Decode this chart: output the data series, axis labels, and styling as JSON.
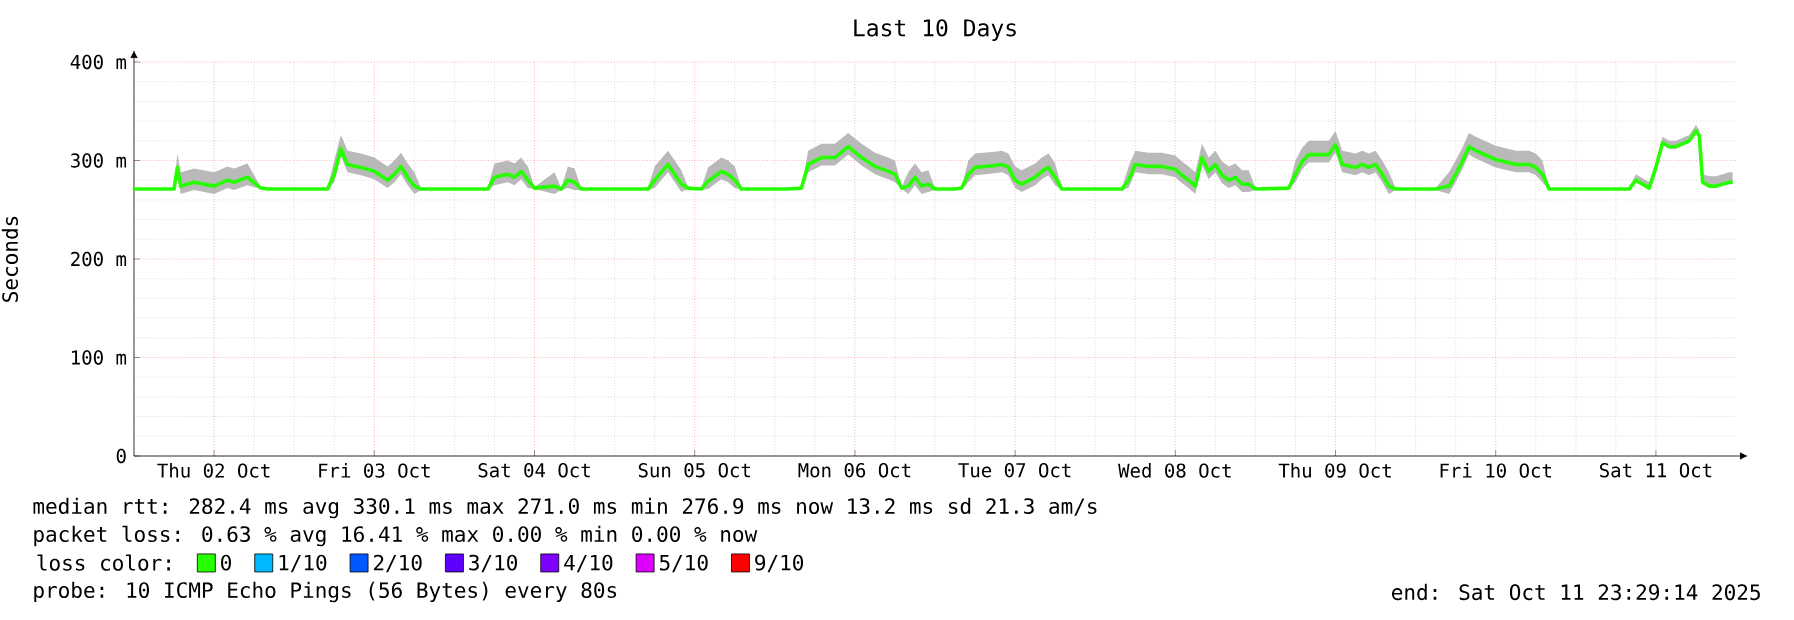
{
  "chart_data": {
    "type": "line",
    "title": "Last 10 Days",
    "ylabel": "Seconds",
    "legend_title": "loss color:",
    "xlim": [
      "2025-10-02T00:00",
      "2025-10-12T00:00"
    ],
    "xticks": [
      {
        "value": "2025-10-02T12:00",
        "label": "Thu 02 Oct"
      },
      {
        "value": "2025-10-03T12:00",
        "label": "Fri 03 Oct"
      },
      {
        "value": "2025-10-04T12:00",
        "label": "Sat 04 Oct"
      },
      {
        "value": "2025-10-05T12:00",
        "label": "Sun 05 Oct"
      },
      {
        "value": "2025-10-06T12:00",
        "label": "Mon 06 Oct"
      },
      {
        "value": "2025-10-07T12:00",
        "label": "Tue 07 Oct"
      },
      {
        "value": "2025-10-08T12:00",
        "label": "Wed 08 Oct"
      },
      {
        "value": "2025-10-09T12:00",
        "label": "Thu 09 Oct"
      },
      {
        "value": "2025-10-10T12:00",
        "label": "Fri 10 Oct"
      },
      {
        "value": "2025-10-11T12:00",
        "label": "Sat 11 Oct"
      }
    ],
    "ylim": [
      0,
      400
    ],
    "yticks": [
      0,
      {
        "value": 100,
        "label": "100 m"
      },
      {
        "value": 200,
        "label": "200 m"
      },
      {
        "value": 300,
        "label": "300 m"
      },
      {
        "value": 400,
        "label": "400 m"
      }
    ],
    "grid": true,
    "legend": "bottom",
    "x": [
      "2025-10-02T00:00",
      "2025-10-02T06:00",
      "2025-10-02T06:30",
      "2025-10-02T07:00",
      "2025-10-02T09:00",
      "2025-10-02T12:00",
      "2025-10-02T14:00",
      "2025-10-02T15:00",
      "2025-10-02T17:00",
      "2025-10-02T19:00",
      "2025-10-02T20:00",
      "2025-10-03T05:00",
      "2025-10-03T06:00",
      "2025-10-03T07:00",
      "2025-10-03T08:00",
      "2025-10-03T10:00",
      "2025-10-03T12:00",
      "2025-10-03T14:00",
      "2025-10-03T15:00",
      "2025-10-03T16:00",
      "2025-10-03T17:00",
      "2025-10-03T18:00",
      "2025-10-03T19:00",
      "2025-10-04T05:00",
      "2025-10-04T06:00",
      "2025-10-04T08:00",
      "2025-10-04T09:00",
      "2025-10-04T10:00",
      "2025-10-04T11:00",
      "2025-10-04T12:00",
      "2025-10-04T15:00",
      "2025-10-04T16:00",
      "2025-10-04T17:00",
      "2025-10-04T18:00",
      "2025-10-04T19:00",
      "2025-10-05T05:00",
      "2025-10-05T06:00",
      "2025-10-05T08:00",
      "2025-10-05T10:00",
      "2025-10-05T11:00",
      "2025-10-05T13:00",
      "2025-10-05T14:00",
      "2025-10-05T16:00",
      "2025-10-05T17:00",
      "2025-10-05T18:00",
      "2025-10-05T19:00",
      "2025-10-06T02:00",
      "2025-10-06T04:00",
      "2025-10-06T05:00",
      "2025-10-06T07:00",
      "2025-10-06T09:00",
      "2025-10-06T11:00",
      "2025-10-06T13:00",
      "2025-10-06T15:00",
      "2025-10-06T17:00",
      "2025-10-06T18:00",
      "2025-10-06T19:00",
      "2025-10-06T20:00",
      "2025-10-06T21:00",
      "2025-10-06T22:00",
      "2025-10-06T23:00",
      "2025-10-07T00:00",
      "2025-10-07T03:00",
      "2025-10-07T04:00",
      "2025-10-07T05:00",
      "2025-10-07T06:00",
      "2025-10-07T09:00",
      "2025-10-07T10:00",
      "2025-10-07T11:00",
      "2025-10-07T12:00",
      "2025-10-07T13:00",
      "2025-10-07T15:00",
      "2025-10-07T16:00",
      "2025-10-07T17:00",
      "2025-10-07T18:00",
      "2025-10-07T19:00",
      "2025-10-08T04:00",
      "2025-10-08T05:00",
      "2025-10-08T06:00",
      "2025-10-08T08:00",
      "2025-10-08T10:00",
      "2025-10-08T12:00",
      "2025-10-08T13:00",
      "2025-10-08T14:00",
      "2025-10-08T15:00",
      "2025-10-08T16:00",
      "2025-10-08T17:00",
      "2025-10-08T18:00",
      "2025-10-08T19:00",
      "2025-10-08T20:00",
      "2025-10-08T21:00",
      "2025-10-08T22:00",
      "2025-10-08T23:00",
      "2025-10-09T00:00",
      "2025-10-09T05:00",
      "2025-10-09T06:00",
      "2025-10-09T07:00",
      "2025-10-09T08:00",
      "2025-10-09T11:00",
      "2025-10-09T12:00",
      "2025-10-09T13:00",
      "2025-10-09T15:00",
      "2025-10-09T16:00",
      "2025-10-09T17:00",
      "2025-10-09T18:00",
      "2025-10-09T19:00",
      "2025-10-09T20:00",
      "2025-10-09T21:00",
      "2025-10-10T03:00",
      "2025-10-10T05:00",
      "2025-10-10T06:00",
      "2025-10-10T07:00",
      "2025-10-10T08:00",
      "2025-10-10T09:00",
      "2025-10-10T12:00",
      "2025-10-10T15:00",
      "2025-10-10T17:00",
      "2025-10-10T18:00",
      "2025-10-10T19:00",
      "2025-10-10T20:00",
      "2025-10-11T08:00",
      "2025-10-11T09:00",
      "2025-10-11T10:00",
      "2025-10-11T11:00",
      "2025-10-11T12:00",
      "2025-10-11T13:00",
      "2025-10-11T14:00",
      "2025-10-11T15:00",
      "2025-10-11T17:00",
      "2025-10-11T18:00",
      "2025-10-11T18:30",
      "2025-10-11T19:00",
      "2025-10-11T20:00",
      "2025-10-11T21:00",
      "2025-10-11T22:00",
      "2025-10-11T23:00",
      "2025-10-11T23:29"
    ],
    "series": [
      {
        "name": "0",
        "color": "#26ff00",
        "values": [
          271,
          271,
          293,
          274,
          278,
          274,
          280,
          278,
          283,
          272,
          271,
          271,
          286,
          312,
          296,
          293,
          289,
          280,
          286,
          294,
          283,
          274,
          271,
          271,
          283,
          286,
          283,
          289,
          280,
          272,
          274,
          271,
          280,
          278,
          271,
          271,
          280,
          296,
          276,
          272,
          271,
          279,
          289,
          286,
          280,
          271,
          271,
          272,
          296,
          303,
          303,
          314,
          303,
          294,
          289,
          286,
          272,
          274,
          283,
          274,
          276,
          271,
          271,
          272,
          286,
          293,
          295,
          296,
          293,
          280,
          276,
          283,
          289,
          293,
          283,
          271,
          271,
          280,
          296,
          294,
          294,
          291,
          285,
          280,
          274,
          303,
          289,
          296,
          285,
          280,
          283,
          276,
          276,
          271,
          272,
          286,
          299,
          306,
          306,
          316,
          296,
          293,
          296,
          293,
          296,
          286,
          274,
          271,
          271,
          274,
          286,
          299,
          314,
          310,
          301,
          296,
          296,
          293,
          286,
          271,
          271,
          280,
          276,
          272,
          293,
          318,
          314,
          314,
          320,
          330,
          325,
          278,
          274,
          274,
          276,
          278,
          278
        ],
        "lower": [
          270,
          270,
          285,
          266,
          270,
          266,
          272,
          270,
          275,
          271,
          270,
          270,
          278,
          304,
          288,
          285,
          281,
          272,
          278,
          286,
          275,
          266,
          270,
          270,
          275,
          278,
          275,
          281,
          272,
          271,
          266,
          270,
          272,
          270,
          270,
          270,
          272,
          288,
          268,
          271,
          270,
          271,
          281,
          278,
          272,
          270,
          270,
          271,
          288,
          295,
          295,
          306,
          295,
          286,
          281,
          278,
          271,
          266,
          275,
          266,
          268,
          270,
          270,
          271,
          278,
          285,
          287,
          288,
          285,
          272,
          268,
          275,
          281,
          285,
          275,
          270,
          270,
          272,
          288,
          286,
          286,
          283,
          277,
          272,
          266,
          295,
          281,
          288,
          277,
          272,
          275,
          268,
          268,
          270,
          271,
          278,
          291,
          298,
          298,
          308,
          288,
          285,
          288,
          285,
          288,
          278,
          266,
          270,
          270,
          266,
          278,
          291,
          306,
          302,
          293,
          288,
          288,
          285,
          278,
          270,
          270,
          278,
          274,
          270,
          291,
          316,
          312,
          312,
          318,
          328,
          323,
          276,
          272,
          272,
          274,
          276,
          276
        ],
        "upper": [
          272,
          272,
          307,
          288,
          292,
          288,
          294,
          292,
          297,
          273,
          272,
          272,
          300,
          326,
          310,
          307,
          303,
          294,
          300,
          308,
          297,
          288,
          272,
          272,
          297,
          300,
          297,
          303,
          294,
          273,
          288,
          272,
          294,
          292,
          272,
          272,
          294,
          310,
          290,
          273,
          272,
          293,
          303,
          300,
          294,
          272,
          272,
          273,
          310,
          317,
          317,
          328,
          317,
          308,
          303,
          300,
          273,
          288,
          297,
          288,
          290,
          272,
          272,
          273,
          300,
          307,
          309,
          310,
          307,
          294,
          290,
          297,
          303,
          307,
          297,
          272,
          272,
          294,
          310,
          308,
          308,
          305,
          299,
          294,
          288,
          317,
          303,
          310,
          299,
          294,
          297,
          290,
          290,
          272,
          273,
          300,
          313,
          320,
          320,
          330,
          310,
          307,
          310,
          307,
          310,
          300,
          288,
          272,
          272,
          288,
          300,
          313,
          328,
          324,
          315,
          310,
          310,
          307,
          300,
          272,
          272,
          286,
          282,
          278,
          299,
          324,
          320,
          320,
          326,
          336,
          331,
          286,
          284,
          284,
          286,
          288,
          288
        ]
      },
      {
        "name": "1/10",
        "color": "#00b8ff",
        "values": [
          null,
          null,
          null,
          null,
          null,
          null,
          null,
          null,
          null,
          null,
          null,
          null,
          null,
          null,
          null,
          null,
          null,
          null,
          null,
          null,
          null,
          null,
          null,
          null,
          null,
          null,
          null,
          null,
          null,
          null,
          null,
          null,
          null,
          null,
          null,
          null,
          null,
          null,
          null,
          null,
          null,
          null,
          null,
          null,
          null,
          null,
          null,
          null,
          null,
          null,
          null,
          null,
          null,
          null,
          null,
          null,
          null,
          null,
          null,
          null,
          null,
          null,
          null,
          null,
          null,
          null,
          null,
          null,
          null,
          null,
          null,
          null,
          null,
          null,
          null,
          null,
          null,
          null,
          null,
          null,
          null,
          null,
          null,
          null,
          null,
          null,
          null,
          null,
          null,
          null,
          null,
          null,
          null,
          null,
          null,
          null,
          null,
          null,
          null,
          null,
          null,
          null,
          null,
          null,
          null,
          null,
          null,
          null,
          null,
          null,
          null,
          null,
          null,
          null,
          null,
          null,
          null,
          null,
          null,
          null,
          null,
          null,
          null,
          null,
          null,
          null,
          null,
          null,
          null,
          null,
          null,
          null,
          null,
          null,
          null,
          null,
          null
        ]
      },
      {
        "name": "2/10",
        "color": "#0059ff",
        "values": [
          null,
          null,
          null,
          null,
          null,
          null,
          null,
          null,
          null,
          null,
          null,
          null,
          null,
          null,
          null,
          null,
          null,
          null,
          null,
          null,
          null,
          null,
          null,
          null,
          null,
          null,
          null,
          null,
          null,
          null,
          null,
          null,
          null,
          null,
          null,
          null,
          null,
          null,
          null,
          null,
          null,
          null,
          null,
          null,
          null,
          null,
          null,
          null,
          null,
          null,
          null,
          null,
          null,
          null,
          null,
          null,
          null,
          null,
          null,
          null,
          null,
          null,
          null,
          null,
          null,
          null,
          null,
          null,
          null,
          null,
          null,
          null,
          null,
          null,
          null,
          null,
          null,
          null,
          null,
          null,
          null,
          null,
          null,
          null,
          null,
          null,
          null,
          null,
          null,
          null,
          null,
          null,
          null,
          null,
          null,
          null,
          null,
          null,
          null,
          null,
          null,
          null,
          null,
          null,
          null,
          null,
          null,
          null,
          null,
          null,
          null,
          null,
          null,
          null,
          null,
          null,
          null,
          null,
          null,
          null,
          null,
          null,
          null,
          null,
          null,
          null,
          null,
          null,
          null,
          null,
          null,
          null,
          null,
          null,
          null,
          null,
          null
        ]
      },
      {
        "name": "3/10",
        "color": "#5e00ff",
        "values": [
          null,
          null,
          null,
          null,
          null,
          null,
          null,
          null,
          null,
          null,
          null,
          null,
          null,
          null,
          null,
          null,
          null,
          null,
          null,
          null,
          null,
          null,
          null,
          null,
          null,
          null,
          null,
          null,
          null,
          null,
          null,
          null,
          null,
          null,
          null,
          null,
          null,
          null,
          null,
          null,
          null,
          null,
          null,
          null,
          null,
          null,
          null,
          null,
          null,
          null,
          null,
          null,
          null,
          null,
          null,
          null,
          null,
          null,
          null,
          null,
          null,
          null,
          null,
          null,
          null,
          null,
          null,
          null,
          null,
          null,
          null,
          null,
          null,
          null,
          null,
          null,
          null,
          null,
          null,
          null,
          null,
          null,
          null,
          null,
          null,
          null,
          null,
          null,
          null,
          null,
          null,
          null,
          null,
          null,
          null,
          null,
          null,
          null,
          null,
          null,
          null,
          null,
          null,
          null,
          null,
          null,
          null,
          null,
          null,
          null,
          null,
          null,
          null,
          null,
          null,
          null,
          null,
          null,
          null,
          null,
          null,
          null,
          null,
          null,
          null,
          null,
          null,
          null,
          null,
          null,
          null,
          null,
          null,
          null,
          null,
          null,
          null
        ]
      },
      {
        "name": "4/10",
        "color": "#7e00ff",
        "values": [
          null,
          null,
          null,
          null,
          null,
          null,
          null,
          null,
          null,
          null,
          null,
          null,
          null,
          null,
          null,
          null,
          null,
          null,
          null,
          null,
          null,
          null,
          null,
          null,
          null,
          null,
          null,
          null,
          null,
          null,
          null,
          null,
          null,
          null,
          null,
          null,
          null,
          null,
          null,
          null,
          null,
          null,
          null,
          null,
          null,
          null,
          null,
          null,
          null,
          null,
          null,
          null,
          null,
          null,
          null,
          null,
          null,
          null,
          null,
          null,
          null,
          null,
          null,
          null,
          null,
          null,
          null,
          null,
          null,
          null,
          null,
          null,
          null,
          null,
          null,
          null,
          null,
          null,
          null,
          null,
          null,
          null,
          null,
          null,
          null,
          null,
          null,
          null,
          null,
          null,
          null,
          null,
          null,
          null,
          null,
          null,
          null,
          null,
          null,
          null,
          null,
          null,
          null,
          null,
          null,
          null,
          null,
          null,
          null,
          null,
          null,
          null,
          null,
          null,
          null,
          null,
          null,
          null,
          null,
          null,
          null,
          null,
          null,
          null,
          null,
          null,
          null,
          null,
          null,
          null,
          null,
          null,
          null,
          null,
          null,
          null,
          null
        ]
      },
      {
        "name": "5/10",
        "color": "#dd00ff",
        "values": [
          null,
          null,
          null,
          null,
          null,
          null,
          null,
          null,
          null,
          null,
          null,
          null,
          null,
          null,
          null,
          null,
          null,
          null,
          null,
          null,
          null,
          null,
          null,
          null,
          null,
          null,
          null,
          null,
          null,
          null,
          null,
          null,
          null,
          null,
          null,
          null,
          null,
          null,
          null,
          null,
          null,
          null,
          null,
          null,
          null,
          null,
          null,
          null,
          null,
          null,
          null,
          null,
          null,
          null,
          null,
          null,
          null,
          null,
          null,
          null,
          null,
          null,
          null,
          null,
          null,
          null,
          null,
          null,
          null,
          null,
          null,
          null,
          null,
          null,
          null,
          null,
          null,
          null,
          null,
          null,
          null,
          null,
          null,
          null,
          null,
          null,
          null,
          null,
          null,
          null,
          null,
          null,
          null,
          null,
          null,
          null,
          null,
          null,
          null,
          null,
          null,
          null,
          null,
          null,
          null,
          null,
          null,
          null,
          null,
          null,
          null,
          null,
          null,
          null,
          null,
          null,
          null,
          null,
          null,
          null,
          null,
          null,
          null,
          null,
          null,
          null,
          null,
          null,
          null,
          null,
          null,
          null,
          null,
          null,
          null,
          null,
          null
        ]
      },
      {
        "name": "9/10",
        "color": "#ff0000",
        "values": [
          null,
          null,
          null,
          null,
          null,
          null,
          null,
          null,
          null,
          null,
          null,
          null,
          null,
          null,
          null,
          null,
          null,
          null,
          null,
          null,
          null,
          null,
          null,
          null,
          null,
          null,
          null,
          null,
          null,
          null,
          null,
          null,
          null,
          null,
          null,
          null,
          null,
          null,
          null,
          null,
          null,
          null,
          null,
          null,
          null,
          null,
          null,
          null,
          null,
          null,
          null,
          null,
          null,
          null,
          null,
          null,
          null,
          null,
          null,
          null,
          null,
          null,
          null,
          null,
          null,
          null,
          null,
          null,
          null,
          null,
          null,
          null,
          null,
          null,
          null,
          null,
          null,
          null,
          null,
          null,
          null,
          null,
          null,
          null,
          null,
          null,
          null,
          null,
          null,
          null,
          null,
          null,
          null,
          null,
          null,
          null,
          null,
          null,
          null,
          null,
          null,
          null,
          null,
          null,
          null,
          null,
          null,
          null,
          null,
          null,
          null,
          null,
          null,
          null,
          null,
          null,
          null,
          null,
          null,
          null,
          null,
          null,
          null,
          null,
          null,
          null,
          null,
          null,
          null,
          null,
          null,
          null,
          null,
          null,
          null,
          null,
          null
        ]
      }
    ],
    "annotations": [
      "median rtt:  282.4 ms avg  330.1 ms max  271.0 ms min  276.9 ms now  13.2 ms sd  21.3   am/s",
      "packet loss: 0.63 % avg  16.41 % max  0.00 % min  0.00 % now",
      "probe:       10 ICMP Echo Pings (56 Bytes) every 80s",
      "end: Sat Oct 11 23:29:14 2025"
    ]
  }
}
